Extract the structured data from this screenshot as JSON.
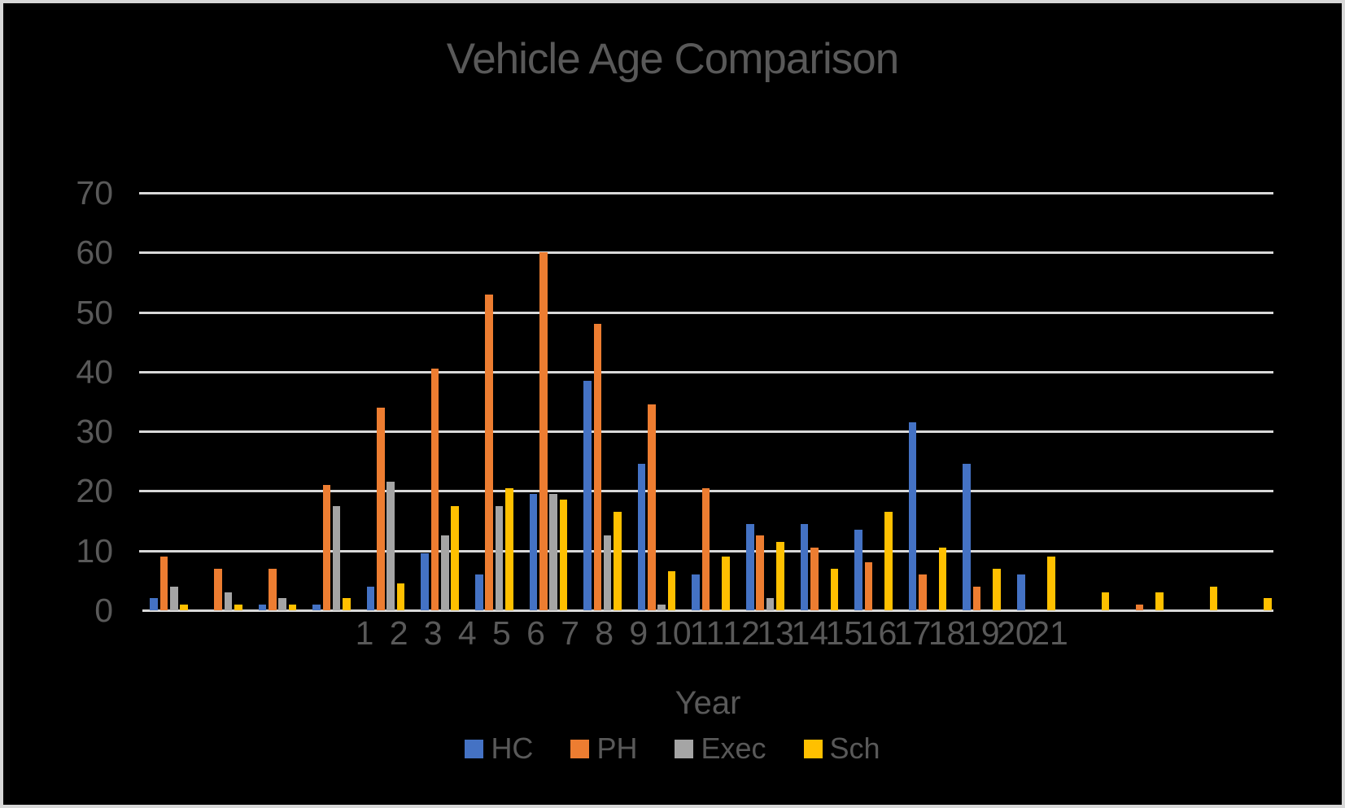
{
  "title": "Vehicle Age Comparison",
  "colors": {
    "background": "#000000",
    "border": "#D8D8D8",
    "gridline": "#D9D9D9",
    "text": "#595959",
    "series_hc": "#4472C4",
    "series_ph": "#ED7D31",
    "series_exec": "#A5A5A5",
    "series_sch": "#FFC000"
  },
  "chart_data": {
    "type": "bar",
    "title": "Vehicle Age Comparison",
    "xlabel": "Year",
    "ylabel": "",
    "ylim": [
      0,
      70
    ],
    "yticks": [
      0,
      10,
      20,
      30,
      40,
      50,
      60,
      70
    ],
    "grid": true,
    "legend_position": "bottom",
    "categories": [
      "1",
      "2",
      "3",
      "4",
      "5",
      "6",
      "7",
      "8",
      "9",
      "10",
      "11",
      "12",
      "13",
      "14",
      "15",
      "16",
      "17",
      "18",
      "19",
      "20",
      "21"
    ],
    "series": [
      {
        "name": "HC",
        "color": "#4472C4",
        "values": [
          2,
          0,
          1,
          1,
          4,
          9.5,
          6,
          19.5,
          38.5,
          24.5,
          6,
          14.5,
          14.5,
          13.5,
          31.5,
          24.5,
          6,
          0,
          0,
          0,
          0
        ]
      },
      {
        "name": "PH",
        "color": "#ED7D31",
        "values": [
          9,
          7,
          7,
          21,
          34,
          40.5,
          53,
          60,
          48,
          34.5,
          20.5,
          12.5,
          10.5,
          8,
          6,
          4,
          0,
          0,
          1,
          0,
          0
        ]
      },
      {
        "name": "Exec",
        "color": "#A5A5A5",
        "values": [
          4,
          3,
          2,
          17.5,
          21.5,
          12.5,
          17.5,
          19.5,
          12.5,
          1,
          0,
          2,
          0,
          0,
          0,
          0,
          0,
          0,
          0,
          0,
          0
        ]
      },
      {
        "name": "Sch",
        "color": "#FFC000",
        "values": [
          1,
          1,
          1,
          2,
          4.5,
          17.5,
          20.5,
          18.5,
          16.5,
          6.5,
          9,
          11.5,
          7,
          16.5,
          10.5,
          7,
          9,
          3,
          3,
          4,
          2
        ]
      }
    ]
  }
}
